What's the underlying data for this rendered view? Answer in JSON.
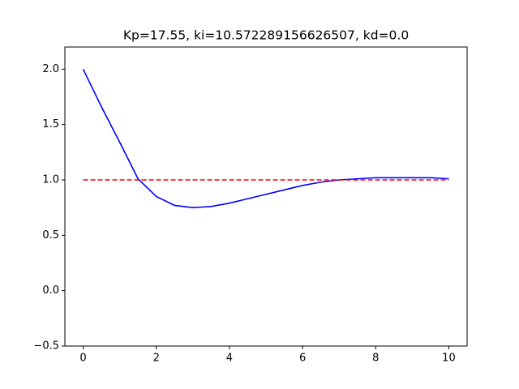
{
  "chart_data": {
    "type": "line",
    "title": "Kp=17.55, ki=10.572289156626507, kd=0.0",
    "series": [
      {
        "color": "#0000ff",
        "dash": false,
        "x": [
          0,
          0.5,
          1,
          1.5,
          2,
          2.5,
          3,
          3.5,
          4,
          4.5,
          5,
          5.5,
          6,
          6.5,
          7,
          7.5,
          8,
          8.5,
          9,
          9.5,
          10
        ],
        "values": [
          2.0,
          1.66,
          1.34,
          1.01,
          0.85,
          0.77,
          0.75,
          0.76,
          0.79,
          0.83,
          0.87,
          0.91,
          0.95,
          0.98,
          1.0,
          1.01,
          1.02,
          1.02,
          1.02,
          1.02,
          1.01
        ]
      },
      {
        "color": "#ff0000",
        "dash": true,
        "x": [
          0,
          10
        ],
        "values": [
          1.0,
          1.0
        ]
      }
    ],
    "xlim": [
      -0.5,
      10.5
    ],
    "ylim": [
      -0.5,
      2.2
    ],
    "xticks": [
      0,
      2,
      4,
      6,
      8,
      10
    ],
    "yticks": [
      {
        "value": -0.5,
        "label": "−0.5"
      },
      {
        "value": 0,
        "label": "0.0"
      },
      {
        "value": 0.5,
        "label": "0.5"
      },
      {
        "value": 1,
        "label": "1.0"
      },
      {
        "value": 1.5,
        "label": "1.5"
      },
      {
        "value": 2,
        "label": "2.0"
      }
    ]
  }
}
